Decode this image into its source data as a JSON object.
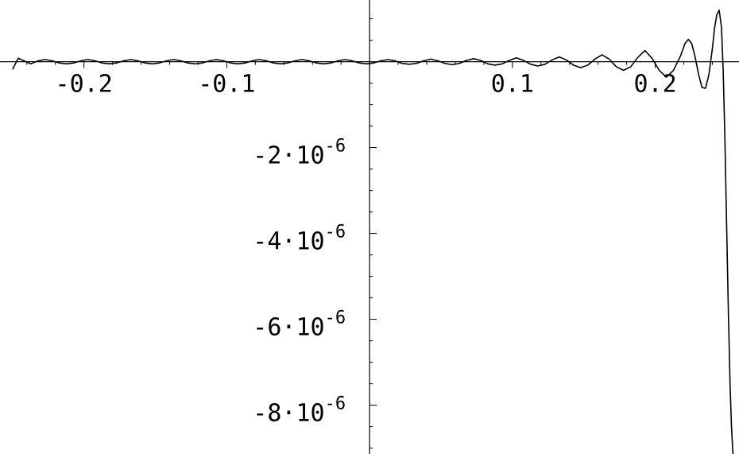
{
  "chart_data": {
    "type": "line",
    "title": "",
    "xlabel": "",
    "ylabel": "",
    "xlim": [
      -0.256,
      0.257
    ],
    "ylim": [
      -9.1e-06,
      1.4e-06
    ],
    "grid": false,
    "legend": "none",
    "x_ticks": [
      {
        "value": -0.2,
        "label": "-0.2"
      },
      {
        "value": -0.1,
        "label": "-0.1"
      },
      {
        "value": 0.1,
        "label": "0.1"
      },
      {
        "value": 0.2,
        "label": "0.2"
      }
    ],
    "y_ticks": [
      {
        "value": -2e-06,
        "mantissa": "-2",
        "base": "·10",
        "exponent": "-6"
      },
      {
        "value": -4e-06,
        "mantissa": "-4",
        "base": "·10",
        "exponent": "-6"
      },
      {
        "value": -6e-06,
        "mantissa": "-6",
        "base": "·10",
        "exponent": "-6"
      },
      {
        "value": -8e-06,
        "mantissa": "-8",
        "base": "·10",
        "exponent": "-6"
      }
    ],
    "series": [
      {
        "x": [
          -0.25,
          -0.246,
          -0.242,
          -0.2372,
          -0.2322,
          -0.2272,
          -0.2222,
          -0.2172,
          -0.2122,
          -0.2072,
          -0.2022,
          -0.1972,
          -0.1922,
          -0.1872,
          -0.1822,
          -0.1772,
          -0.1722,
          -0.1672,
          -0.1622,
          -0.1572,
          -0.1522,
          -0.1472,
          -0.1422,
          -0.1372,
          -0.1322,
          -0.1272,
          -0.1222,
          -0.1172,
          -0.1122,
          -0.1072,
          -0.1022,
          -0.0972,
          -0.0922,
          -0.0872,
          -0.0822,
          -0.0772,
          -0.0722,
          -0.0672,
          -0.0622,
          -0.0572,
          -0.0522,
          -0.0472,
          -0.0422,
          -0.0372,
          -0.0322,
          -0.0272,
          -0.0222,
          -0.0172,
          -0.0122,
          -0.0072,
          -0.0022,
          0.0028,
          0.0078,
          0.0128,
          0.0178,
          0.0228,
          0.0278,
          0.0328,
          0.0378,
          0.0428,
          0.0478,
          0.0528,
          0.0578,
          0.0628,
          0.0678,
          0.0728,
          0.0778,
          0.0828,
          0.0878,
          0.0928,
          0.0978,
          0.1028,
          0.1078,
          0.1128,
          0.1178,
          0.1228,
          0.1278,
          0.1328,
          0.1378,
          0.1428,
          0.1478,
          0.1528,
          0.1578,
          0.1628,
          0.1678,
          0.1728,
          0.1778,
          0.1828,
          0.1878,
          0.1928,
          0.1978,
          0.2028,
          0.2078,
          0.2128,
          0.2178,
          0.2208,
          0.2232,
          0.2256,
          0.228,
          0.2304,
          0.2328,
          0.2352,
          0.2376,
          0.24,
          0.2416,
          0.2432,
          0.2448,
          0.2464,
          0.2476,
          0.2488,
          0.25,
          0.2512,
          0.2524,
          0.2534,
          0.2542,
          0.2548
        ],
        "y": [
          -1.8e-07,
          8e-08,
          2e-08,
          -5e-08,
          2e-08,
          5e-08,
          2e-08,
          -3e-08,
          -5e-08,
          -3e-08,
          2e-08,
          5e-08,
          2e-08,
          -3e-08,
          -5e-08,
          -3e-08,
          2e-08,
          5e-08,
          2e-08,
          -3e-08,
          -5e-08,
          -3e-08,
          2e-08,
          5e-08,
          2e-08,
          -3e-08,
          -5e-08,
          -3e-08,
          2e-08,
          5e-08,
          2e-08,
          -3e-08,
          -5e-08,
          -3e-08,
          2e-08,
          5e-08,
          2e-08,
          -3e-08,
          -5e-08,
          -3e-08,
          2e-08,
          5e-08,
          2e-08,
          -3e-08,
          -5e-08,
          -3e-08,
          2e-08,
          5e-08,
          2e-08,
          -3e-08,
          -5e-08,
          -3e-08,
          2e-08,
          5e-08,
          2e-08,
          -4e-08,
          -6e-08,
          -4e-08,
          2e-08,
          6e-08,
          2e-08,
          -4e-08,
          -7e-08,
          -4e-08,
          3e-08,
          7e-08,
          3e-08,
          -5e-08,
          -8e-08,
          -5e-08,
          3e-08,
          9e-08,
          3e-08,
          -6e-08,
          -1e-07,
          -6e-08,
          4e-08,
          1.1e-07,
          4e-08,
          -8e-08,
          -1.4e-07,
          -8e-08,
          6e-08,
          1.6e-07,
          6e-08,
          -1.2e-07,
          -2e-07,
          -1.2e-07,
          1e-07,
          2.6e-07,
          8e-08,
          -2e-07,
          -3.6e-07,
          -2e-07,
          1.4e-07,
          4.2e-07,
          5.2e-07,
          4.2e-07,
          1e-07,
          -3e-07,
          -6e-07,
          -6.2e-07,
          -3e-07,
          3e-07,
          8e-07,
          1.1e-06,
          1.2e-06,
          8e-07,
          -2e-07,
          -1.8e-06,
          -3.8e-06,
          -5.8e-06,
          -7.5e-06,
          -8.5e-06,
          -9e-06,
          -9.3e-06
        ]
      }
    ]
  }
}
